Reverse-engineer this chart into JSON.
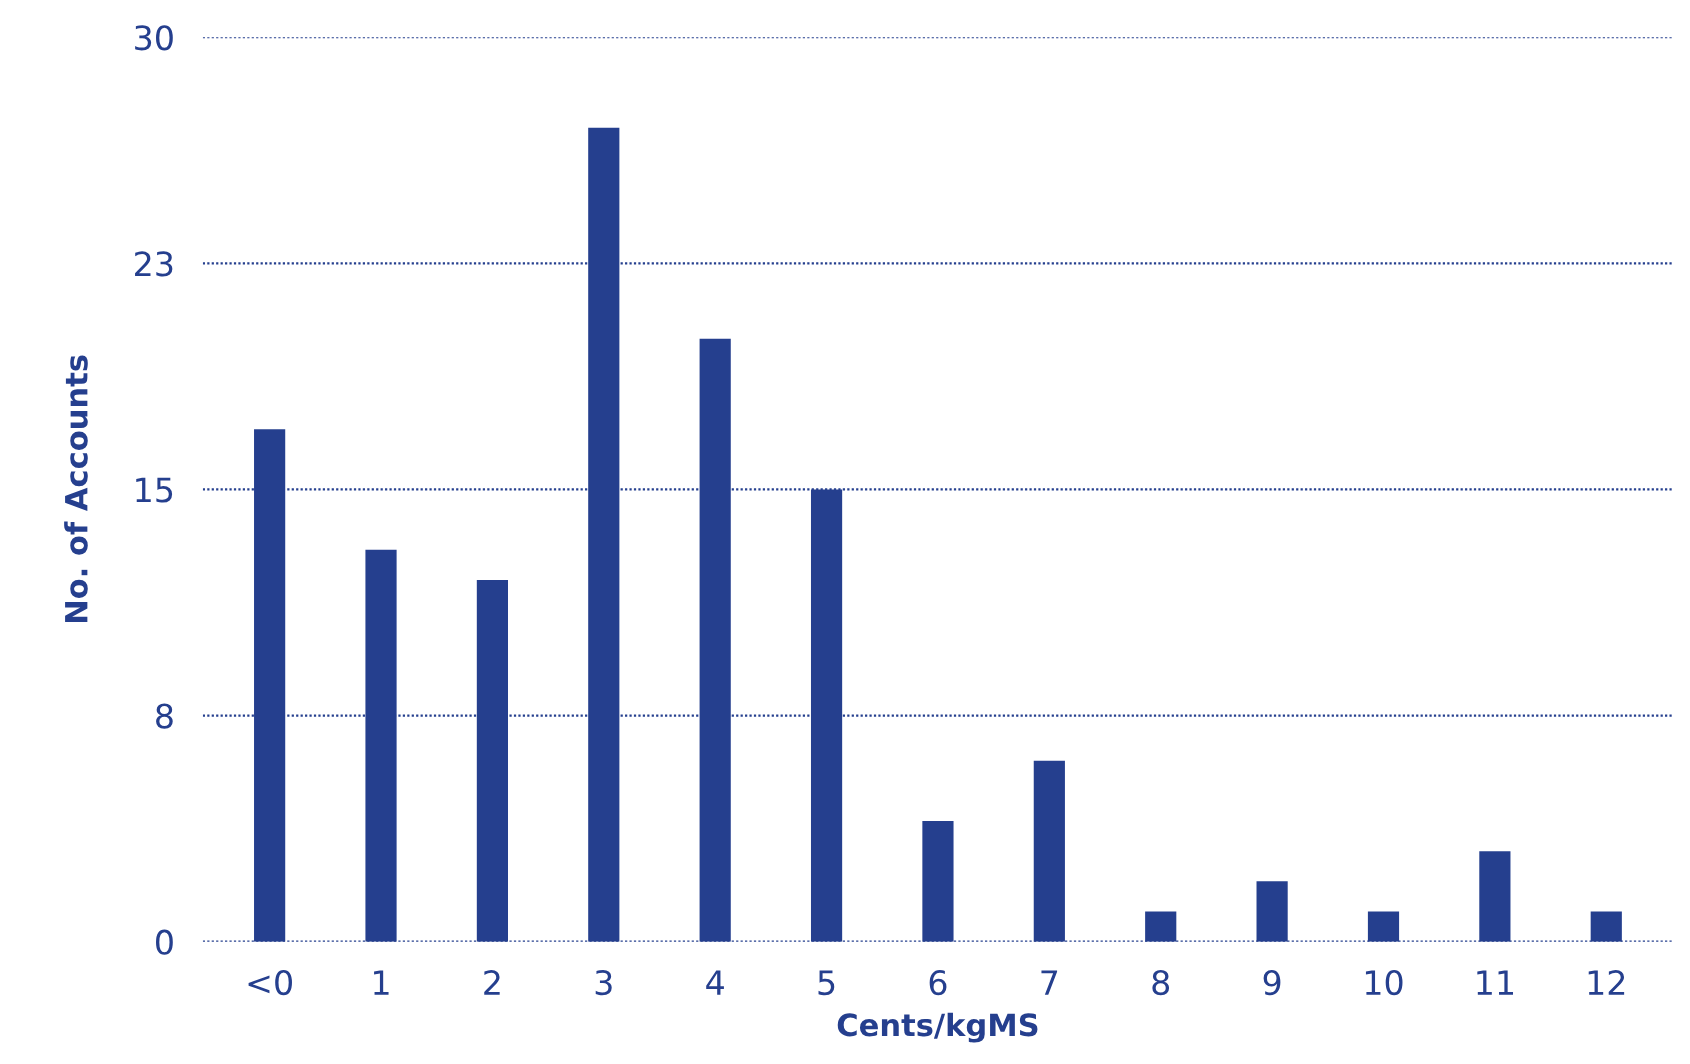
{
  "chart_data": {
    "type": "bar",
    "xlabel": "Cents/kgMS",
    "ylabel": "No. of Accounts",
    "categories": [
      "<0",
      "1",
      "2",
      "3",
      "4",
      "5",
      "6",
      "7",
      "8",
      "9",
      "10",
      "11",
      "12"
    ],
    "values": [
      17,
      13,
      12,
      27,
      20,
      15,
      4,
      6,
      1,
      2,
      1,
      3,
      1
    ],
    "color": "#253f8e",
    "ylim": [
      0,
      30
    ],
    "yticks": [
      0,
      {
        "value": 7.5,
        "label": "8"
      },
      15,
      {
        "value": 22.5,
        "label": "23"
      },
      30
    ],
    "grid": "y"
  }
}
